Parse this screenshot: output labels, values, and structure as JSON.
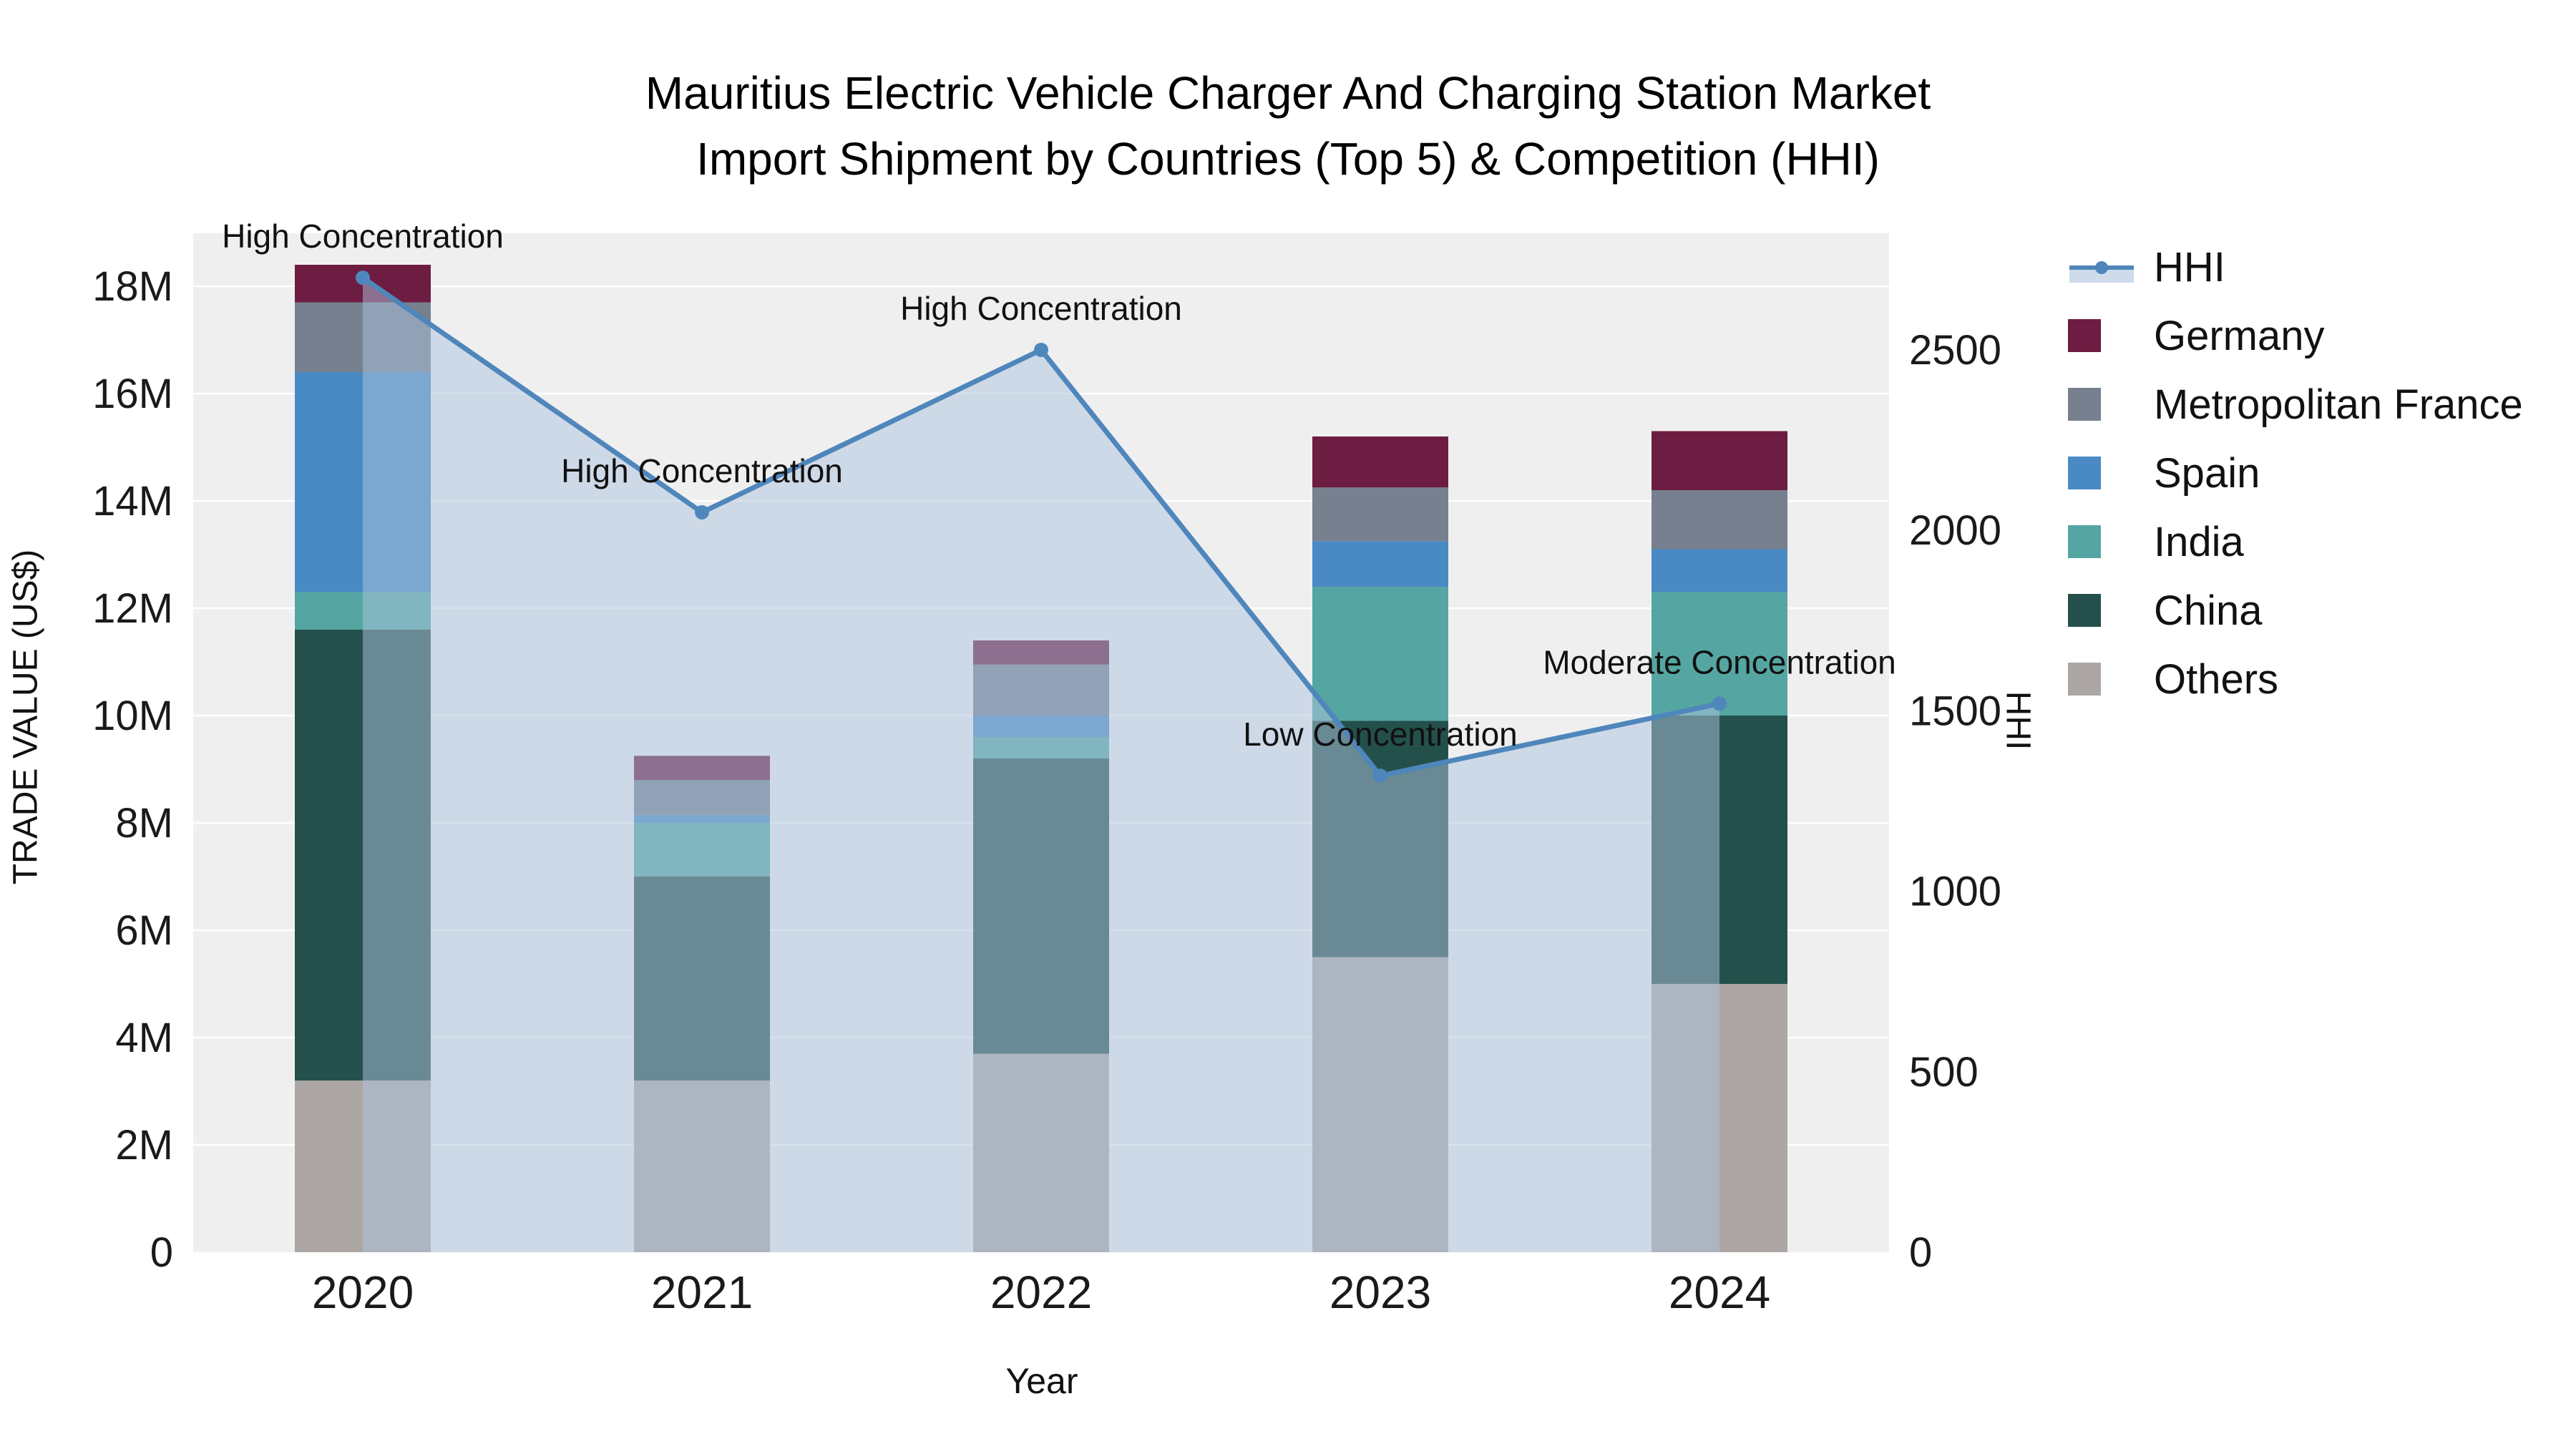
{
  "title": {
    "line1": "Mauritius Electric Vehicle Charger And Charging Station Market",
    "line2": "Import Shipment by Countries (Top 5) & Competition (HHI)"
  },
  "chart_data": {
    "type": "bar",
    "subtype": "stacked-bars-with-hhi-line-overlay",
    "x_label": "Year",
    "categories": [
      "2020",
      "2021",
      "2022",
      "2023",
      "2024"
    ],
    "y_left": {
      "label": "TRADE VALUE (US$)",
      "unit": "million US$",
      "min": 0,
      "max": 18.93,
      "ticks": [
        {
          "value": 0,
          "label": "0"
        },
        {
          "value": 2,
          "label": "2M"
        },
        {
          "value": 4,
          "label": "4M"
        },
        {
          "value": 6,
          "label": "6M"
        },
        {
          "value": 8,
          "label": "8M"
        },
        {
          "value": 10,
          "label": "10M"
        },
        {
          "value": 12,
          "label": "12M"
        },
        {
          "value": 14,
          "label": "14M"
        },
        {
          "value": 16,
          "label": "16M"
        },
        {
          "value": 18,
          "label": "18M"
        }
      ]
    },
    "y_right": {
      "label": "HHI",
      "min": 0,
      "max": 2823,
      "ticks": [
        {
          "value": 0,
          "label": "0"
        },
        {
          "value": 500,
          "label": "500"
        },
        {
          "value": 1000,
          "label": "1000"
        },
        {
          "value": 1500,
          "label": "1500"
        },
        {
          "value": 2000,
          "label": "2000"
        },
        {
          "value": 2500,
          "label": "2500"
        }
      ]
    },
    "series": [
      {
        "name": "Others",
        "color": "#aca7a4",
        "values": [
          3.2,
          3.2,
          3.7,
          5.5,
          5.0
        ]
      },
      {
        "name": "China",
        "color": "#24504b",
        "values": [
          8.4,
          3.8,
          5.5,
          4.4,
          5.0
        ]
      },
      {
        "name": "India",
        "color": "#55a6a2",
        "values": [
          0.7,
          1.0,
          0.4,
          2.5,
          2.3
        ]
      },
      {
        "name": "Spain",
        "color": "#4a8ac4",
        "values": [
          4.1,
          0.15,
          0.4,
          0.85,
          0.8
        ]
      },
      {
        "name": "Metropolitan France",
        "color": "#76808e",
        "values": [
          1.3,
          0.65,
          0.95,
          1.0,
          1.1
        ]
      },
      {
        "name": "Germany",
        "color": "#6d1d41",
        "values": [
          0.7,
          0.45,
          0.45,
          0.95,
          1.1
        ]
      }
    ],
    "line_series": {
      "name": "HHI",
      "color": "#4f86bb",
      "area_fill": "#aec3dd",
      "area_opacity": 0.5,
      "values": [
        2700,
        2050,
        2500,
        1320,
        1520
      ],
      "annotations": [
        "High Concentration",
        "High Concentration",
        "High Concentration",
        "Low Concentration",
        "Moderate Concentration"
      ]
    },
    "legend_order": [
      "HHI",
      "Germany",
      "Metropolitan France",
      "Spain",
      "India",
      "China",
      "Others"
    ],
    "plot_background": "#efeff0",
    "grid": "on",
    "legend_position": "top-right"
  }
}
